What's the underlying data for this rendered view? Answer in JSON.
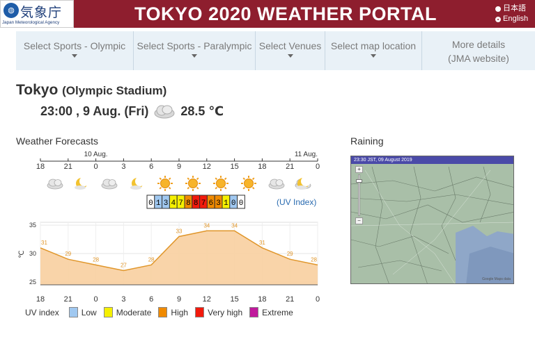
{
  "header": {
    "logo_text": "気象庁",
    "logo_subtext": "Japan Meteorological Agency",
    "title": "TOKYO 2020 WEATHER PORTAL",
    "languages": [
      {
        "label": "日本語",
        "selected": false
      },
      {
        "label": "English",
        "selected": true
      }
    ]
  },
  "nav": {
    "items": [
      {
        "label": "Select Sports - Olympic",
        "has_dropdown": true
      },
      {
        "label": "Select Sports - Paralympic",
        "has_dropdown": true
      },
      {
        "label": "Select Venues",
        "has_dropdown": true
      },
      {
        "label": "Select map location",
        "has_dropdown": true
      },
      {
        "label": "More details (JMA website)",
        "has_dropdown": false
      }
    ]
  },
  "location": {
    "city": "Tokyo",
    "venue": "(Olympic Stadium)",
    "datetime": "23:00 , 9 Aug. (Fri)",
    "current_weather_icon": "cloud-icon",
    "temperature": "28.5 ℃"
  },
  "forecast": {
    "title": "Weather Forecasts",
    "date_labels": [
      {
        "label": "10 Aug.",
        "hour_index": 2
      },
      {
        "label": "11 Aug.",
        "hour_index": 10
      }
    ],
    "hours": [
      "18",
      "21",
      "0",
      "3",
      "6",
      "9",
      "12",
      "15",
      "18",
      "21",
      "0"
    ],
    "weather_icons": [
      "cloud-icon",
      "moon-icon",
      "cloud-icon",
      "moon-icon",
      "sun-icon",
      "sun-icon",
      "sun-icon",
      "sun-icon",
      "cloud-icon",
      "cloud-icon",
      "moon-icon"
    ],
    "uv_values": [
      "0",
      "1",
      "3",
      "4",
      "7",
      "8",
      "8",
      "7",
      "6",
      "3",
      "1",
      "0",
      "0"
    ],
    "uv_colors": [
      "#ffffff",
      "#a0c8f0",
      "#a0c8f0",
      "#f5f000",
      "#f5f000",
      "#f08a00",
      "#f21a0c",
      "#f21a0c",
      "#f08a00",
      "#f08a00",
      "#f5f000",
      "#a0c8f0",
      "#ffffff",
      "#ffffff"
    ],
    "uv_link_label": "(UV Index)",
    "uv_legend_title": "UV index",
    "uv_legend": [
      {
        "label": "Low",
        "color": "#a0c8f0"
      },
      {
        "label": "Moderate",
        "color": "#f5f000"
      },
      {
        "label": "High",
        "color": "#f08a00"
      },
      {
        "label": "Very high",
        "color": "#f21a0c"
      },
      {
        "label": "Extreme",
        "color": "#c01a9c"
      }
    ]
  },
  "chart_data": {
    "type": "area",
    "x": [
      "18",
      "21",
      "0",
      "3",
      "6",
      "9",
      "12",
      "15",
      "18",
      "21",
      "0"
    ],
    "series": [
      {
        "values": [
          31,
          29,
          28,
          27,
          28,
          33,
          34,
          34,
          31,
          29,
          28
        ]
      }
    ],
    "ylabel": "℃",
    "yticks": [
      25,
      30,
      35
    ],
    "ylim": [
      24.5,
      35.5
    ],
    "grid": true,
    "fill_color": "#f8cfa0",
    "line_color": "#e0962a"
  },
  "rain": {
    "title": "Raining",
    "timestamp": "23:30 JST, 09 August 2019",
    "zoom_in": "+",
    "zoom_out": "−",
    "attribution": "Google Maps data"
  }
}
